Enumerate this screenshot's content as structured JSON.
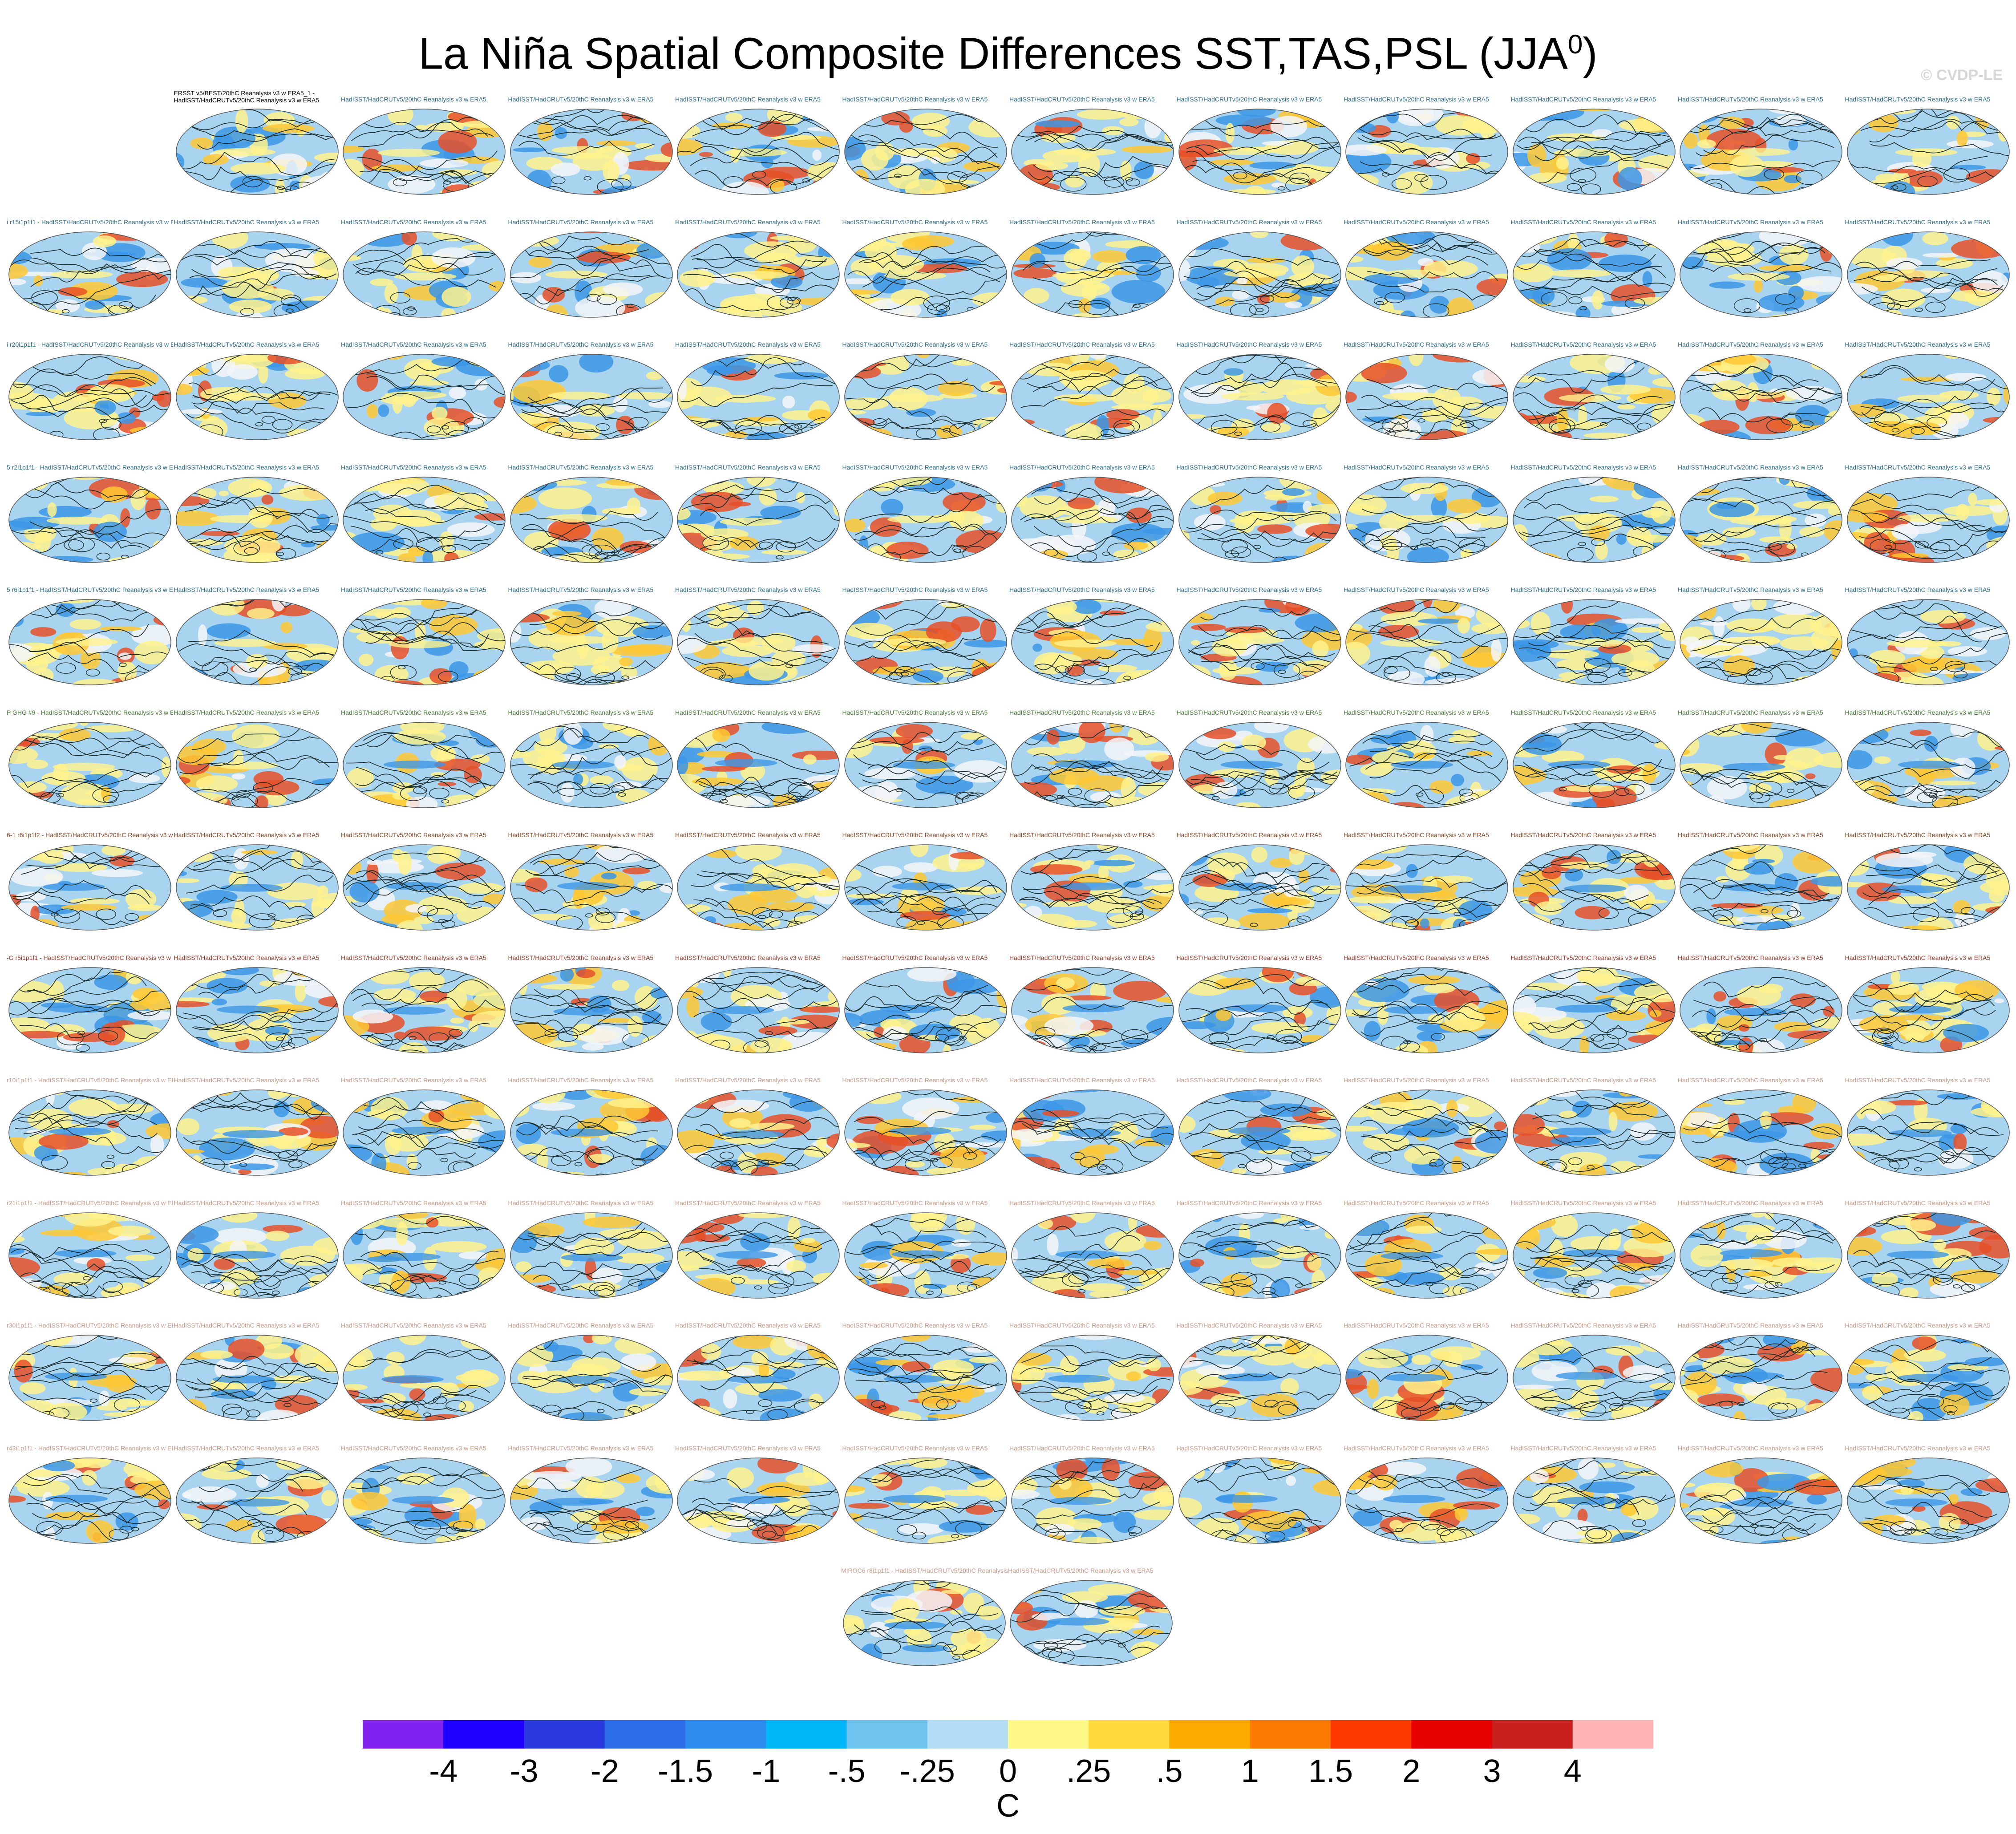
{
  "title": "La Niña Spatial Composite Differences SST,TAS,PSL (JJA",
  "title_sup": "0",
  "title_close": ")",
  "credit": "© CVDP-LE",
  "first_panel_label": "ERSST v5/BEST/20thC Reanalysis v3 w ERA5_1 - HadISST/HadCRUTv5/20thC Reanalysis v3 w ERA5",
  "panel_label_text": "HadISST/HadCRUTv5/20thC Reanalysis v3 w ERA5",
  "row_prefixes": [
    "",
    "i r15i1p1f1 -",
    "i r20i1p1f1 -",
    "5 r2i1p1f1 -",
    "5 r6i1p1f1 -",
    "P GHG #9 -",
    "6-1 r6i1p1f2 -",
    "-G r5i1p1f1 -",
    "r10i1p1f1 -",
    "r21i1p1f1 -",
    "r30i1p1f1 -",
    "r43i1p1f1 -",
    "MIROC6 r8i1p1f1 -"
  ],
  "row_label_colors": [
    "#2a6e8c",
    "#2a6e8c",
    "#2a6e8c",
    "#2a6e8c",
    "#2a6e8c",
    "#4a7a3a",
    "#8a4a2a",
    "#9a3a2a",
    "#c99a8a",
    "#c99a8a",
    "#c99a8a",
    "#c99a8a",
    "#c99a8a"
  ],
  "colorbar": {
    "colors": [
      "#8121f0",
      "#1e00ff",
      "#2a3ae0",
      "#2e6ee8",
      "#2e8ef0",
      "#00b8f8",
      "#70c4f0",
      "#b4dcf4",
      "#fff98a",
      "#ffd93a",
      "#ffaa00",
      "#ff7a00",
      "#ff3a00",
      "#e60000",
      "#c81e1e",
      "#ffb4b4"
    ],
    "labels": [
      "-4",
      "-3",
      "-2",
      "-1.5",
      "-1",
      "-.5",
      "-.25",
      "0",
      ".25",
      ".5",
      "1",
      "1.5",
      "2",
      "3",
      "4"
    ],
    "units": "C"
  },
  "map_colors": {
    "ocean_blue": "#a8d4f0",
    "ocean_dark_blue": "#3c96e6",
    "yellow": "#fff28c",
    "orange": "#ffc832",
    "red": "#e65028",
    "land_white": "#f4f6f8",
    "contour": "#1a2a2a"
  }
}
